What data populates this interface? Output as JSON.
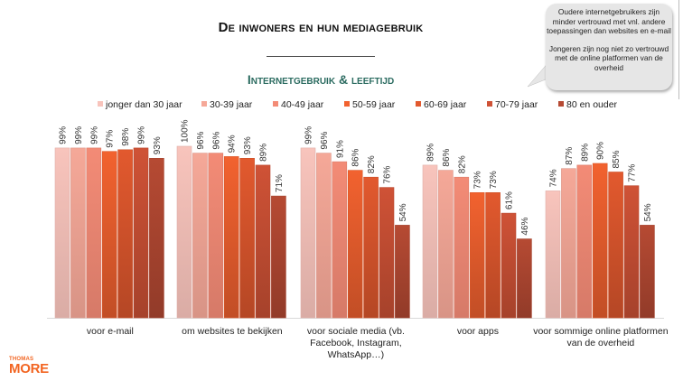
{
  "header": {
    "title": "De inwoners en hun mediagebruik",
    "subtitle": "Internetgebruik & leeftijd"
  },
  "callout": {
    "line1": "Oudere internetgebruikers zijn minder vertrouwd met vnl. andere toepassingen dan websites en e-mail",
    "line2": "Jongeren zijn nog niet zo vertrouwd met de online platformen van de overheid"
  },
  "logo": {
    "top": "THOMAS",
    "bottom": "MORE"
  },
  "chart_data": {
    "type": "bar",
    "title": "",
    "xlabel": "",
    "ylabel": "",
    "ylim": [
      0,
      100
    ],
    "grid": false,
    "legend": "top",
    "value_format": "percent",
    "categories": [
      "voor e-mail",
      "om websites te bekijken",
      "voor sociale media (vb. Facebook, Instagram, WhatsApp…)",
      "voor apps",
      "voor sommige online platformen van de overheid"
    ],
    "series": [
      {
        "name": "jonger dan 30 jaar",
        "color": "#f8c4bc",
        "values": [
          99,
          100,
          99,
          89,
          74
        ]
      },
      {
        "name": "30-39 jaar",
        "color": "#f5a898",
        "values": [
          99,
          96,
          96,
          86,
          87
        ]
      },
      {
        "name": "40-49 jaar",
        "color": "#f38b76",
        "values": [
          99,
          96,
          91,
          82,
          89
        ]
      },
      {
        "name": "50-59 jaar",
        "color": "#f2622f",
        "values": [
          97,
          94,
          86,
          73,
          90
        ]
      },
      {
        "name": "60-69 jaar",
        "color": "#e2592e",
        "values": [
          98,
          93,
          82,
          73,
          85
        ]
      },
      {
        "name": "70-79 jaar",
        "color": "#cf5236",
        "values": [
          99,
          89,
          76,
          61,
          77
        ]
      },
      {
        "name": "80 en ouder",
        "color": "#b64a33",
        "values": [
          93,
          71,
          54,
          46,
          54
        ]
      }
    ]
  }
}
